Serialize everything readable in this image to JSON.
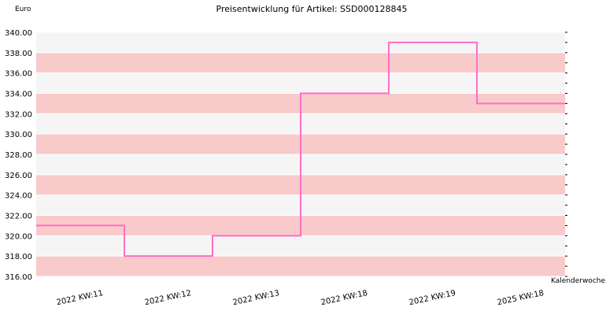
{
  "chart_data": {
    "type": "line",
    "step": true,
    "title": "Preisentwicklung für Artikel: SSD000128845",
    "ylabel": "Euro",
    "xlabel": "Kalenderwoche",
    "ylim": [
      316,
      340
    ],
    "ytick_step": 2,
    "ytick_labels": [
      "316.00",
      "318.00",
      "320.00",
      "322.00",
      "324.00",
      "326.00",
      "328.00",
      "330.00",
      "332.00",
      "334.00",
      "336.00",
      "338.00",
      "340.00"
    ],
    "categories": [
      "2022 KW:11",
      "2022 KW:12",
      "2022 KW:13",
      "2022 KW:18",
      "2022 KW:19",
      "2025 KW:18"
    ],
    "values": [
      321,
      318,
      320,
      334,
      339,
      333
    ],
    "grid": true,
    "legend": "none",
    "colors": {
      "line": "#ff6ec7",
      "band_a": "#f8caca",
      "band_b": "#f5f5f5",
      "grid": "#ffffff"
    }
  }
}
